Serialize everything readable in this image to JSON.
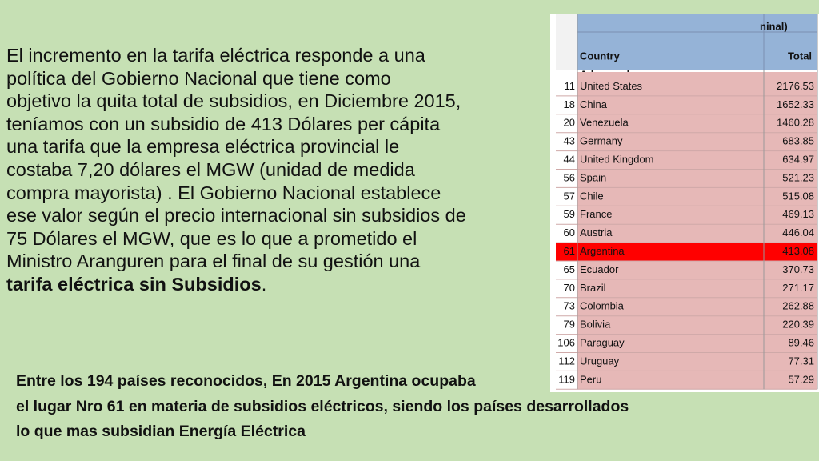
{
  "paragraph": {
    "lines": [
      "El incremento en la tarifa eléctrica responde a una",
      "política del Gobierno Nacional que tiene como",
      "objetivo la quita total de subsidios, en Diciembre 2015,",
      "teníamos con un subsidio de 413 Dólares per cápita",
      "una tarifa que la empresa eléctrica provincial le",
      "costaba 7,20 dólares el MGW (unidad de medida",
      "compra mayorista) . El Gobierno Nacional establece",
      "ese valor según el precio internacional sin subsidios de",
      "75 Dólares el MGW, que es lo que a prometido el",
      "Ministro Aranguren para el final de su gestión una"
    ],
    "bold": "tarifa eléctrica sin Subsidios",
    "end": "."
  },
  "footer": {
    "lines": [
      "Entre los 194 países reconocidos, En 2015 Argentina ocupaba",
      "el lugar  Nro 61 en materia de subsidios eléctricos, siendo los países desarrollados",
      " lo que mas subsidian Energía Eléctrica"
    ]
  },
  "table": {
    "header_partial": "ninal)",
    "group": "Advanced",
    "columns": [
      "Country",
      "Total"
    ],
    "rows": [
      [
        11,
        "United States",
        2176.53
      ],
      [
        18,
        "China",
        1652.33
      ],
      [
        20,
        "Venezuela",
        1460.28
      ],
      [
        43,
        "Germany",
        683.85
      ],
      [
        44,
        "United Kingdom",
        634.97
      ],
      [
        56,
        "Spain",
        521.23
      ],
      [
        57,
        "Chile",
        515.08
      ],
      [
        59,
        "France",
        469.13
      ],
      [
        60,
        "Austria",
        446.04
      ],
      [
        61,
        "Argentina",
        413.08
      ],
      [
        65,
        "Ecuador",
        370.73
      ],
      [
        70,
        "Brazil",
        271.17
      ],
      [
        73,
        "Colombia",
        262.88
      ],
      [
        79,
        "Bolivia",
        220.39
      ],
      [
        106,
        "Paraguay",
        89.46
      ],
      [
        112,
        "Uruguay",
        77.31
      ],
      [
        119,
        "Peru",
        57.29
      ]
    ],
    "highlight": "Argentina"
  }
}
